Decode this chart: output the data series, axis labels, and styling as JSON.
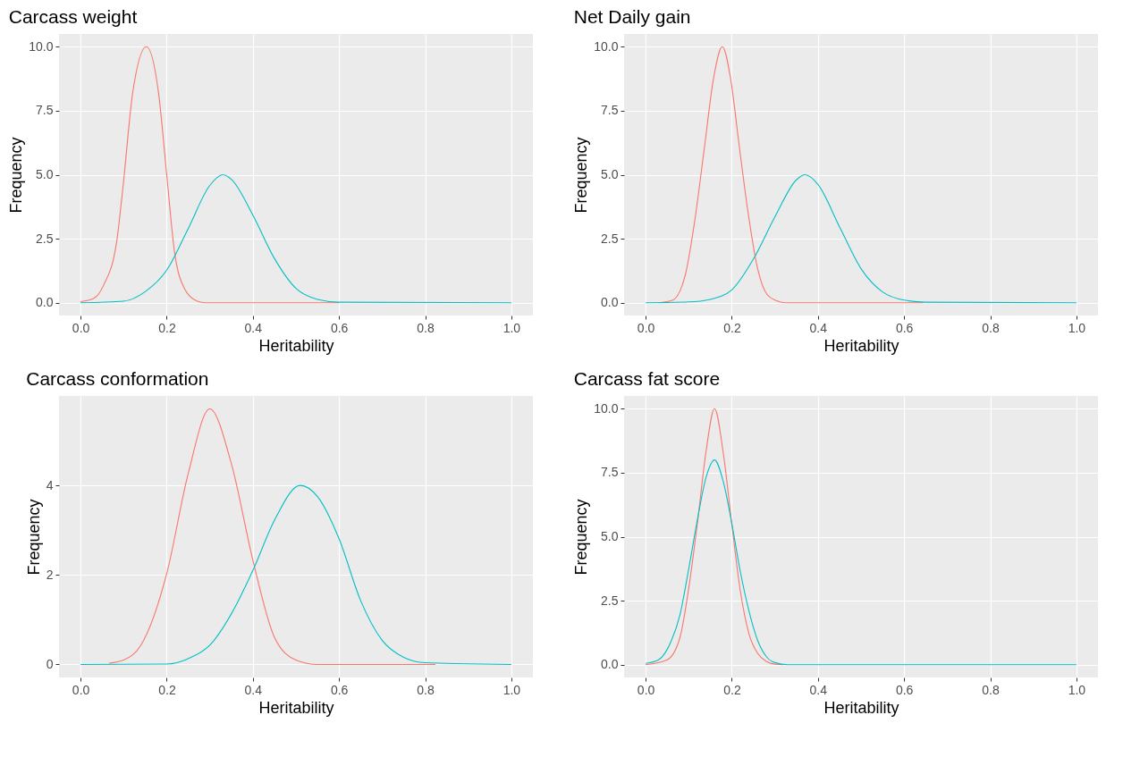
{
  "chart_data": [
    {
      "type": "line",
      "title": "Carcass weight",
      "xlabel": "Heritability",
      "ylabel": "Frequency",
      "grid": true,
      "xlim": [
        -0.05,
        1.05
      ],
      "ylim": [
        -0.5,
        10.5
      ],
      "xticks": [
        {
          "value": 0,
          "label": "0.0"
        },
        {
          "value": 0.2,
          "label": "0.2"
        },
        {
          "value": 0.4,
          "label": "0.4"
        },
        {
          "value": 0.6,
          "label": "0.6"
        },
        {
          "value": 0.8,
          "label": "0.8"
        },
        {
          "value": 1,
          "label": "1.0"
        }
      ],
      "yticks": [
        {
          "value": 0,
          "label": "0.0"
        },
        {
          "value": 2.5,
          "label": "2.5"
        },
        {
          "value": 5,
          "label": "5.0"
        },
        {
          "value": 7.5,
          "label": "7.5"
        },
        {
          "value": 10,
          "label": "10.0"
        }
      ],
      "series": [
        {
          "color": "#f8766d",
          "x": [
            0,
            0.031,
            0.054,
            0.084,
            0.099,
            0.121,
            0.153,
            0.181,
            0.2,
            0.218,
            0.241,
            0.271,
            0.29,
            0.6
          ],
          "values": [
            0.04,
            0.17,
            0.7,
            2.4,
            4.6,
            8.2,
            10,
            8.2,
            5.0,
            2.0,
            0.56,
            0.06,
            0,
            0
          ]
        },
        {
          "color": "#00bfc4",
          "x": [
            0,
            0.1,
            0.15,
            0.2,
            0.25,
            0.3,
            0.33,
            0.35,
            0.4,
            0.45,
            0.5,
            0.55,
            0.6,
            1
          ],
          "values": [
            0,
            0.06,
            0.43,
            1.27,
            2.9,
            4.58,
            5.0,
            4.82,
            3.42,
            1.73,
            0.56,
            0.13,
            0.02,
            0
          ]
        }
      ]
    },
    {
      "type": "line",
      "title": "Net Daily gain",
      "xlabel": "Heritability",
      "ylabel": "Frequency",
      "grid": true,
      "xlim": [
        -0.05,
        1.05
      ],
      "ylim": [
        -0.5,
        10.5
      ],
      "xticks": [
        {
          "value": 0,
          "label": "0.0"
        },
        {
          "value": 0.2,
          "label": "0.2"
        },
        {
          "value": 0.4,
          "label": "0.4"
        },
        {
          "value": 0.6,
          "label": "0.6"
        },
        {
          "value": 0.8,
          "label": "0.8"
        },
        {
          "value": 1,
          "label": "1.0"
        }
      ],
      "yticks": [
        {
          "value": 0,
          "label": "0.0"
        },
        {
          "value": 2.5,
          "label": "2.5"
        },
        {
          "value": 5,
          "label": "5.0"
        },
        {
          "value": 7.5,
          "label": "7.5"
        },
        {
          "value": 10,
          "label": "10.0"
        }
      ],
      "series": [
        {
          "color": "#f8766d",
          "x": [
            0.033,
            0.062,
            0.092,
            0.114,
            0.136,
            0.158,
            0.178,
            0.198,
            0.216,
            0.238,
            0.26,
            0.282,
            0.304,
            0.326,
            0.645
          ],
          "values": [
            0,
            0.09,
            1.08,
            3.2,
            6.0,
            8.8,
            10,
            8.67,
            6.3,
            3.5,
            1.33,
            0.32,
            0.08,
            0,
            0
          ]
        },
        {
          "color": "#00bfc4",
          "x": [
            0,
            0.1,
            0.15,
            0.2,
            0.25,
            0.3,
            0.35,
            0.37,
            0.4,
            0.45,
            0.5,
            0.55,
            0.6,
            0.65,
            1
          ],
          "values": [
            0,
            0.03,
            0.13,
            0.5,
            1.7,
            3.35,
            4.8,
            5.0,
            4.62,
            2.97,
            1.33,
            0.42,
            0.1,
            0.02,
            0
          ]
        }
      ]
    },
    {
      "type": "line",
      "title": "Carcass conformation",
      "xlabel": "Heritability",
      "ylabel": "Frequency",
      "grid": true,
      "xlim": [
        -0.05,
        1.05
      ],
      "ylim": [
        -0.29,
        6.0
      ],
      "xticks": [
        {
          "value": 0,
          "label": "0.0"
        },
        {
          "value": 0.2,
          "label": "0.2"
        },
        {
          "value": 0.4,
          "label": "0.4"
        },
        {
          "value": 0.6,
          "label": "0.6"
        },
        {
          "value": 0.8,
          "label": "0.8"
        },
        {
          "value": 1,
          "label": "1.0"
        }
      ],
      "yticks": [
        0,
        2,
        4
      ],
      "series": [
        {
          "color": "#f8766d",
          "x": [
            0.066,
            0.1,
            0.14,
            0.2,
            0.25,
            0.3,
            0.35,
            0.4,
            0.45,
            0.5,
            0.55,
            0.824
          ],
          "values": [
            0.03,
            0.1,
            0.43,
            2.03,
            4.27,
            5.71,
            4.49,
            2.33,
            0.61,
            0.1,
            0,
            0
          ]
        },
        {
          "color": "#00bfc4",
          "x": [
            0,
            0.2,
            0.25,
            0.3,
            0.35,
            0.4,
            0.45,
            0.51,
            0.55,
            0.6,
            0.65,
            0.7,
            0.75,
            0.8,
            1
          ],
          "values": [
            0,
            0.01,
            0.13,
            0.43,
            1.13,
            2.1,
            3.22,
            4.0,
            3.75,
            2.81,
            1.43,
            0.54,
            0.16,
            0.04,
            0
          ]
        }
      ]
    },
    {
      "type": "line",
      "title": "Carcass fat score",
      "xlabel": "Heritability",
      "ylabel": "Frequency",
      "grid": true,
      "xlim": [
        -0.05,
        1.05
      ],
      "ylim": [
        -0.5,
        10.5
      ],
      "xticks": [
        {
          "value": 0,
          "label": "0.0"
        },
        {
          "value": 0.2,
          "label": "0.2"
        },
        {
          "value": 0.4,
          "label": "0.4"
        },
        {
          "value": 0.6,
          "label": "0.6"
        },
        {
          "value": 0.8,
          "label": "0.8"
        },
        {
          "value": 1,
          "label": "1.0"
        }
      ],
      "yticks": [
        {
          "value": 0,
          "label": "0.0"
        },
        {
          "value": 2.5,
          "label": "2.5"
        },
        {
          "value": 5,
          "label": "5.0"
        },
        {
          "value": 7.5,
          "label": "7.5"
        },
        {
          "value": 10,
          "label": "10.0"
        }
      ],
      "series": [
        {
          "color": "#f8766d",
          "x": [
            0,
            0.05,
            0.08,
            0.1,
            0.12,
            0.14,
            0.16,
            0.18,
            0.2,
            0.22,
            0.24,
            0.26,
            0.28,
            0.3,
            0.32
          ],
          "values": [
            0,
            0.19,
            1.08,
            2.98,
            5.5,
            8.3,
            10,
            8.3,
            5.5,
            2.86,
            1.2,
            0.44,
            0.13,
            0.02,
            0
          ]
        },
        {
          "color": "#00bfc4",
          "x": [
            0,
            0.03,
            0.06,
            0.08,
            0.1,
            0.12,
            0.14,
            0.16,
            0.18,
            0.2,
            0.22,
            0.24,
            0.26,
            0.28,
            0.3,
            0.33,
            1
          ],
          "values": [
            0.05,
            0.19,
            0.95,
            1.97,
            3.74,
            5.65,
            7.3,
            8.0,
            7.17,
            5.52,
            3.62,
            2.09,
            0.95,
            0.32,
            0.08,
            0,
            0
          ]
        }
      ]
    }
  ]
}
